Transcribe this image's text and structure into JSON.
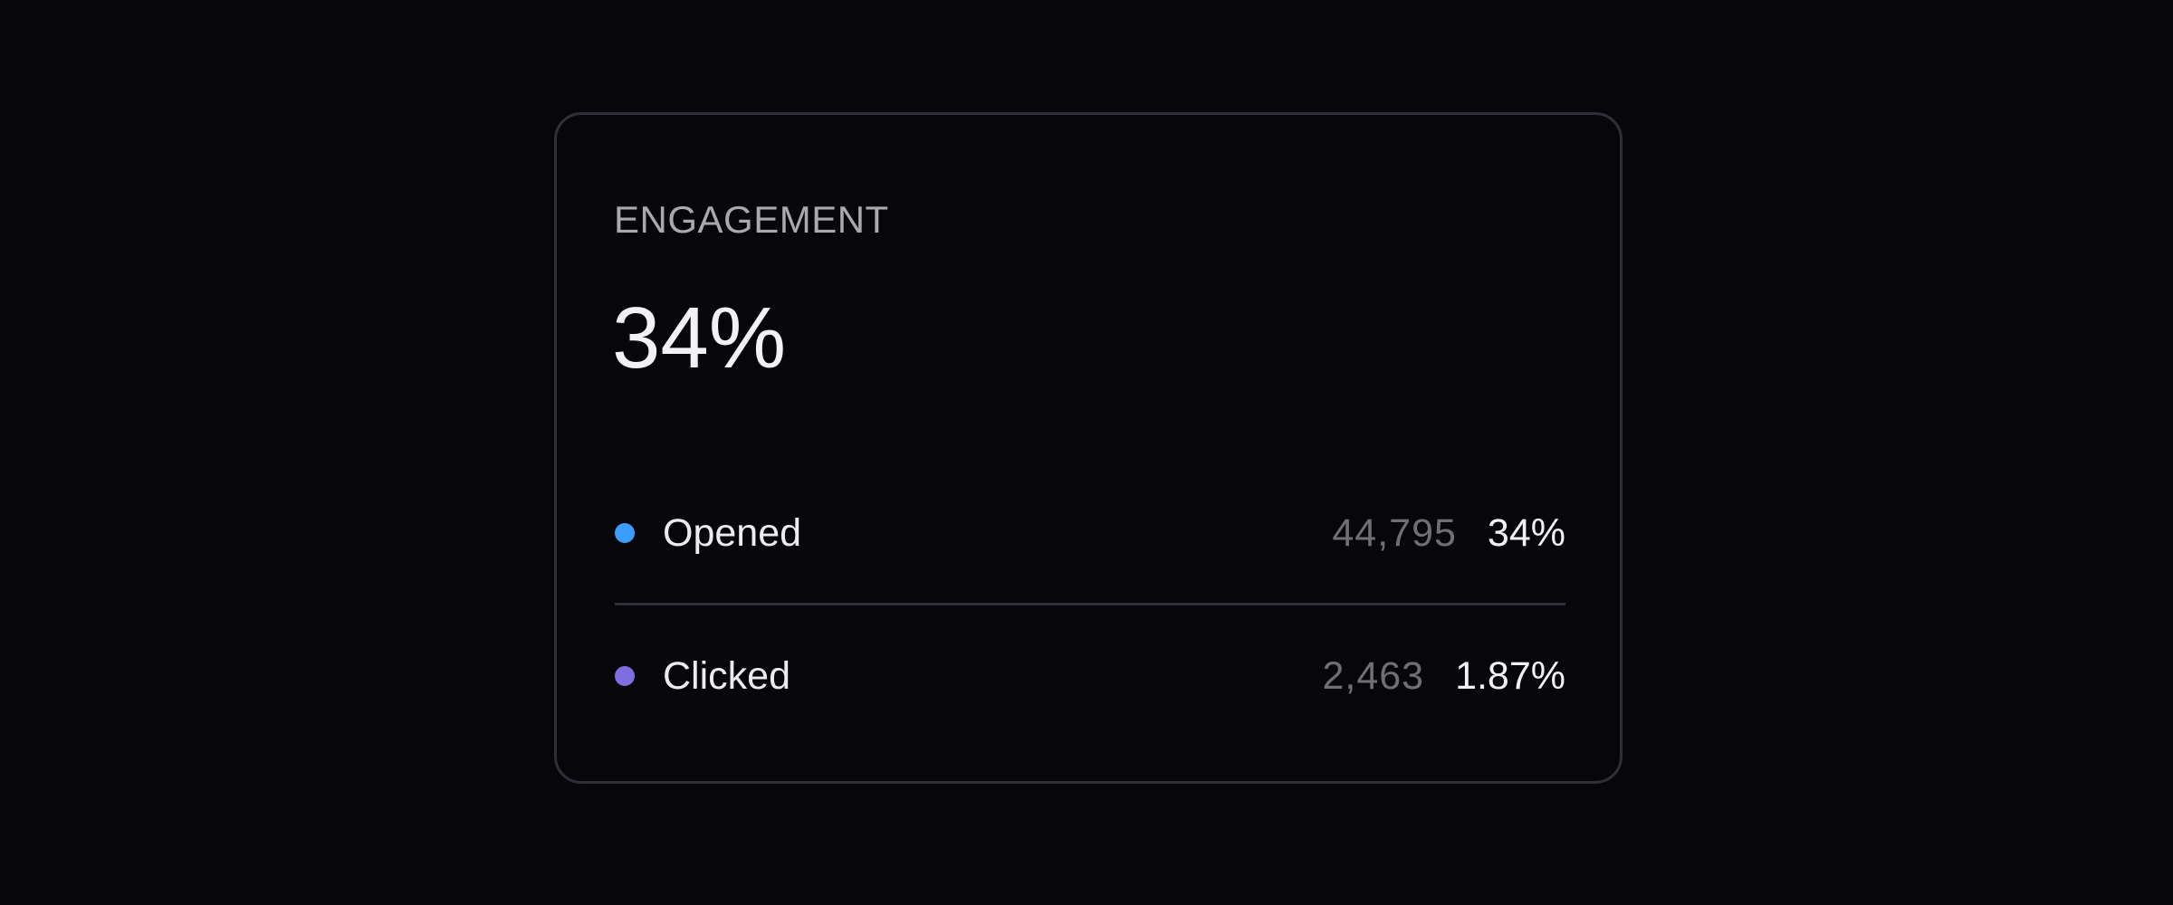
{
  "card": {
    "title": "ENGAGEMENT",
    "value": "34%",
    "rows": [
      {
        "label": "Opened",
        "count": "44,795",
        "percent": "34%",
        "color": "#3b9eff"
      },
      {
        "label": "Clicked",
        "count": "2,463",
        "percent": "1.87%",
        "color": "#7e6ee0"
      }
    ]
  }
}
